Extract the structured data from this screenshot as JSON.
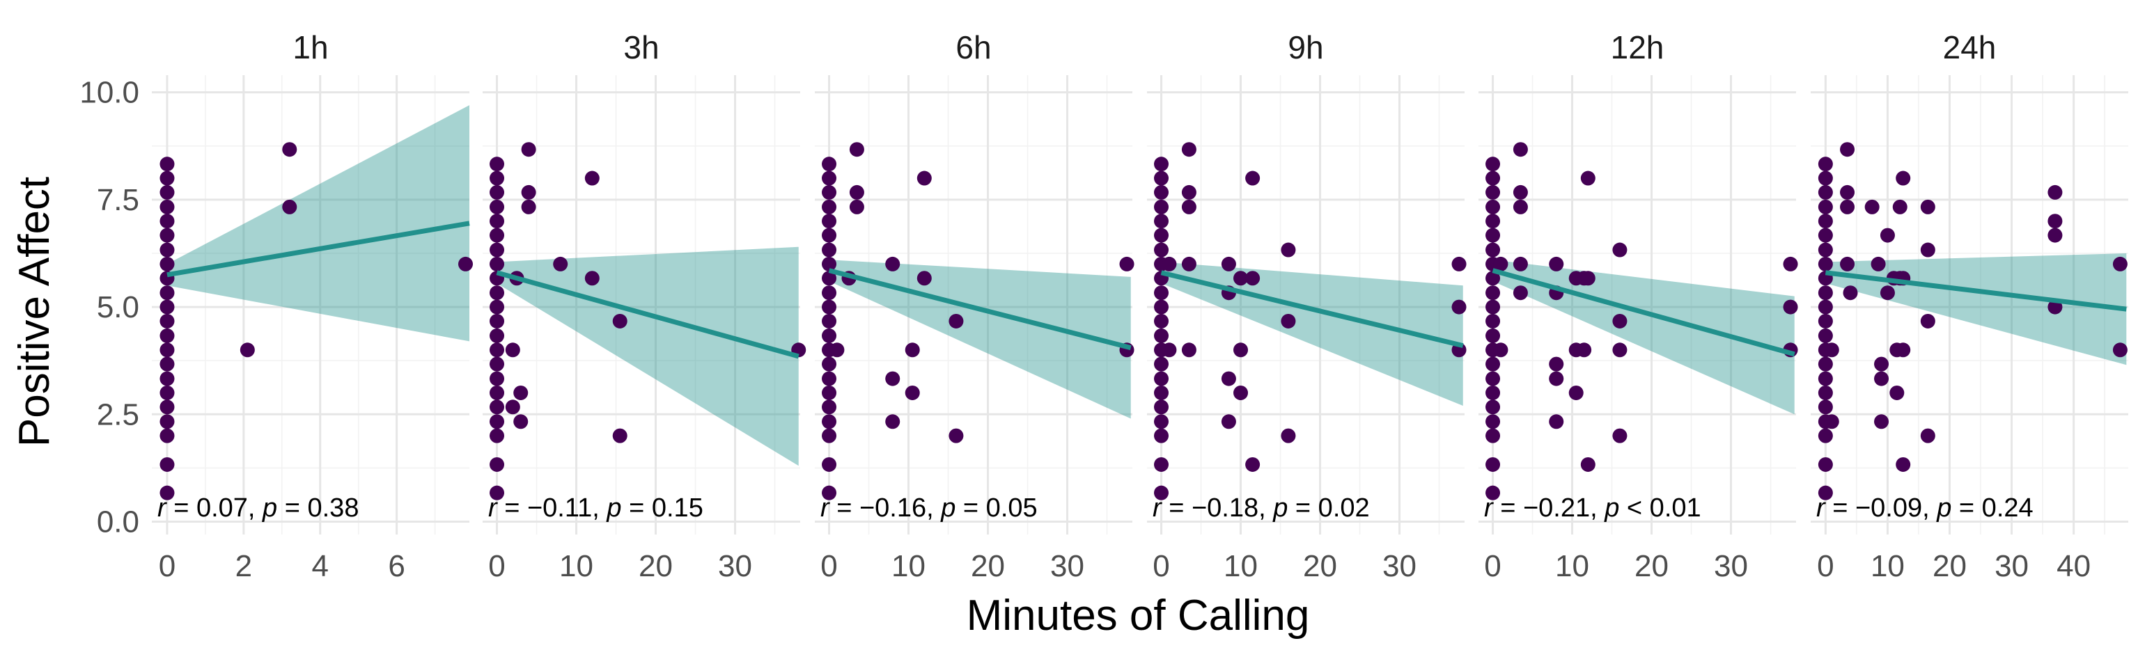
{
  "chart_data": {
    "type": "scatter",
    "xlabel": "Minutes of Calling",
    "ylabel": "Positive Affect",
    "y_ticks": [
      "0.0",
      "2.5",
      "5.0",
      "7.5",
      "10.0"
    ],
    "y_tick_values": [
      0,
      2.5,
      5,
      7.5,
      10
    ],
    "ylim": [
      -0.3,
      10.4
    ],
    "colors": {
      "points": "#440154",
      "line": "#21908c",
      "band": "#21908c"
    },
    "panels": [
      {
        "label": "1h",
        "xlim": [
          -0.4,
          7.9
        ],
        "x_ticks": [
          "0",
          "2",
          "4",
          "6"
        ],
        "x_tick_values": [
          0,
          2,
          4,
          6
        ],
        "annotation": {
          "r": "0.07",
          "p_op": "=",
          "p": "0.38"
        },
        "fit": {
          "x0": 0,
          "y0": 5.75,
          "x1": 7.9,
          "y1": 6.95,
          "lower0": 5.5,
          "upper0": 6.0,
          "lower1": 4.2,
          "upper1": 9.7
        },
        "points": [
          [
            0,
            0.67
          ],
          [
            0,
            1.33
          ],
          [
            0,
            2.0
          ],
          [
            0,
            2.33
          ],
          [
            0,
            2.67
          ],
          [
            0,
            3.0
          ],
          [
            0,
            3.33
          ],
          [
            0,
            3.67
          ],
          [
            0,
            4.0
          ],
          [
            0,
            4.33
          ],
          [
            0,
            4.67
          ],
          [
            0,
            5.0
          ],
          [
            0,
            5.33
          ],
          [
            0,
            5.67
          ],
          [
            0,
            6.0
          ],
          [
            0,
            6.33
          ],
          [
            0,
            6.67
          ],
          [
            0,
            7.0
          ],
          [
            0,
            7.33
          ],
          [
            0,
            7.67
          ],
          [
            0,
            8.0
          ],
          [
            0,
            8.33
          ],
          [
            2.1,
            4.0
          ],
          [
            3.2,
            7.33
          ],
          [
            3.2,
            8.67
          ],
          [
            7.8,
            6.0
          ]
        ]
      },
      {
        "label": "3h",
        "xlim": [
          -1.8,
          38.2
        ],
        "x_ticks": [
          "0",
          "10",
          "20",
          "30"
        ],
        "x_tick_values": [
          0,
          10,
          20,
          30
        ],
        "annotation": {
          "r": "−0.11",
          "p_op": "=",
          "p": "0.15"
        },
        "fit": {
          "x0": 0,
          "y0": 5.8,
          "x1": 38,
          "y1": 3.85,
          "lower0": 5.55,
          "upper0": 6.05,
          "lower1": 1.3,
          "upper1": 6.4
        },
        "points": [
          [
            0,
            0.67
          ],
          [
            0,
            1.33
          ],
          [
            0,
            2.0
          ],
          [
            0,
            2.33
          ],
          [
            0,
            2.67
          ],
          [
            0,
            3.0
          ],
          [
            0,
            3.33
          ],
          [
            0,
            3.67
          ],
          [
            0,
            4.0
          ],
          [
            0,
            4.33
          ],
          [
            0,
            4.67
          ],
          [
            0,
            5.0
          ],
          [
            0,
            5.33
          ],
          [
            0,
            5.67
          ],
          [
            0,
            6.0
          ],
          [
            0,
            6.33
          ],
          [
            0,
            6.67
          ],
          [
            0,
            7.0
          ],
          [
            0,
            7.33
          ],
          [
            0,
            7.67
          ],
          [
            0,
            8.0
          ],
          [
            0,
            8.33
          ],
          [
            2,
            4.0
          ],
          [
            2,
            2.67
          ],
          [
            2.5,
            5.67
          ],
          [
            3,
            2.33
          ],
          [
            3,
            3.0
          ],
          [
            4,
            8.67
          ],
          [
            4,
            7.67
          ],
          [
            4,
            7.33
          ],
          [
            8,
            6.0
          ],
          [
            12,
            8.0
          ],
          [
            12,
            5.67
          ],
          [
            15.5,
            4.67
          ],
          [
            15.5,
            2.0
          ],
          [
            38,
            4.0
          ]
        ]
      },
      {
        "label": "6h",
        "xlim": [
          -1.8,
          38.2
        ],
        "x_ticks": [
          "0",
          "10",
          "20",
          "30"
        ],
        "x_tick_values": [
          0,
          10,
          20,
          30
        ],
        "annotation": {
          "r": "−0.16",
          "p_op": "=",
          "p": "0.05"
        },
        "fit": {
          "x0": 0,
          "y0": 5.85,
          "x1": 38,
          "y1": 4.05,
          "lower0": 5.6,
          "upper0": 6.1,
          "lower1": 2.4,
          "upper1": 5.7
        },
        "points": [
          [
            0,
            0.67
          ],
          [
            0,
            1.33
          ],
          [
            0,
            2.0
          ],
          [
            0,
            2.33
          ],
          [
            0,
            2.67
          ],
          [
            0,
            3.0
          ],
          [
            0,
            3.33
          ],
          [
            0,
            3.67
          ],
          [
            0,
            4.0
          ],
          [
            0,
            4.33
          ],
          [
            0,
            4.67
          ],
          [
            0,
            5.0
          ],
          [
            0,
            5.33
          ],
          [
            0,
            5.67
          ],
          [
            0,
            6.0
          ],
          [
            0,
            6.33
          ],
          [
            0,
            6.67
          ],
          [
            0,
            7.0
          ],
          [
            0,
            7.33
          ],
          [
            0,
            7.67
          ],
          [
            0,
            8.0
          ],
          [
            0,
            8.33
          ],
          [
            1,
            4.0
          ],
          [
            2.5,
            5.67
          ],
          [
            3.5,
            8.67
          ],
          [
            3.5,
            7.67
          ],
          [
            3.5,
            7.33
          ],
          [
            8,
            6.0
          ],
          [
            8,
            3.33
          ],
          [
            8,
            2.33
          ],
          [
            10.5,
            4.0
          ],
          [
            10.5,
            3.0
          ],
          [
            12,
            8.0
          ],
          [
            12,
            5.67
          ],
          [
            16,
            4.67
          ],
          [
            16,
            2.0
          ],
          [
            37.5,
            6.0
          ],
          [
            37.5,
            4.0
          ]
        ]
      },
      {
        "label": "9h",
        "xlim": [
          -1.8,
          38.2
        ],
        "x_ticks": [
          "0",
          "10",
          "20",
          "30"
        ],
        "x_tick_values": [
          0,
          10,
          20,
          30
        ],
        "annotation": {
          "r": "−0.18",
          "p_op": "=",
          "p": "0.02"
        },
        "fit": {
          "x0": 0,
          "y0": 5.8,
          "x1": 38,
          "y1": 4.1,
          "lower0": 5.55,
          "upper0": 6.05,
          "lower1": 2.7,
          "upper1": 5.5
        },
        "points": [
          [
            0,
            0.67
          ],
          [
            0,
            1.33
          ],
          [
            0,
            2.0
          ],
          [
            0,
            2.33
          ],
          [
            0,
            2.67
          ],
          [
            0,
            3.0
          ],
          [
            0,
            3.33
          ],
          [
            0,
            3.67
          ],
          [
            0,
            4.0
          ],
          [
            0,
            4.33
          ],
          [
            0,
            4.67
          ],
          [
            0,
            5.0
          ],
          [
            0,
            5.33
          ],
          [
            0,
            5.67
          ],
          [
            0,
            6.0
          ],
          [
            0,
            6.33
          ],
          [
            0,
            6.67
          ],
          [
            0,
            7.0
          ],
          [
            0,
            7.33
          ],
          [
            0,
            7.67
          ],
          [
            0,
            8.0
          ],
          [
            0,
            8.33
          ],
          [
            1,
            6.0
          ],
          [
            1,
            4.0
          ],
          [
            3.5,
            8.67
          ],
          [
            3.5,
            7.67
          ],
          [
            3.5,
            7.33
          ],
          [
            3.5,
            4.0
          ],
          [
            3.5,
            6.0
          ],
          [
            8.5,
            6.0
          ],
          [
            8.5,
            5.33
          ],
          [
            8.5,
            3.33
          ],
          [
            8.5,
            2.33
          ],
          [
            10,
            5.67
          ],
          [
            10,
            4.0
          ],
          [
            10,
            3.0
          ],
          [
            11.5,
            8.0
          ],
          [
            11.5,
            5.67
          ],
          [
            11.5,
            1.33
          ],
          [
            16,
            6.33
          ],
          [
            16,
            4.67
          ],
          [
            16,
            2.0
          ],
          [
            37.5,
            6.0
          ],
          [
            37.5,
            5.0
          ],
          [
            37.5,
            4.0
          ]
        ]
      },
      {
        "label": "12h",
        "xlim": [
          -1.8,
          38.2
        ],
        "x_ticks": [
          "0",
          "10",
          "20",
          "30"
        ],
        "x_tick_values": [
          0,
          10,
          20,
          30
        ],
        "annotation": {
          "r": "−0.21",
          "p_op": "<",
          "p": "0.01"
        },
        "fit": {
          "x0": 0,
          "y0": 5.85,
          "x1": 38,
          "y1": 3.9,
          "lower0": 5.6,
          "upper0": 6.1,
          "lower1": 2.5,
          "upper1": 5.25
        },
        "points": [
          [
            0,
            0.67
          ],
          [
            0,
            1.33
          ],
          [
            0,
            2.0
          ],
          [
            0,
            2.33
          ],
          [
            0,
            2.67
          ],
          [
            0,
            3.0
          ],
          [
            0,
            3.33
          ],
          [
            0,
            3.67
          ],
          [
            0,
            4.0
          ],
          [
            0,
            4.33
          ],
          [
            0,
            4.67
          ],
          [
            0,
            5.0
          ],
          [
            0,
            5.33
          ],
          [
            0,
            5.67
          ],
          [
            0,
            6.0
          ],
          [
            0,
            6.33
          ],
          [
            0,
            6.67
          ],
          [
            0,
            7.0
          ],
          [
            0,
            7.33
          ],
          [
            0,
            7.67
          ],
          [
            0,
            8.0
          ],
          [
            0,
            8.33
          ],
          [
            1,
            4.0
          ],
          [
            1,
            6.0
          ],
          [
            3.5,
            8.67
          ],
          [
            3.5,
            7.67
          ],
          [
            3.5,
            7.33
          ],
          [
            3.5,
            6.0
          ],
          [
            3.5,
            5.33
          ],
          [
            8,
            6.0
          ],
          [
            8,
            5.33
          ],
          [
            8,
            3.67
          ],
          [
            8,
            3.33
          ],
          [
            8,
            2.33
          ],
          [
            10.5,
            5.67
          ],
          [
            10.5,
            4.0
          ],
          [
            10.5,
            3.0
          ],
          [
            11.5,
            5.67
          ],
          [
            11.5,
            4.0
          ],
          [
            12,
            8.0
          ],
          [
            12,
            5.67
          ],
          [
            12,
            1.33
          ],
          [
            16,
            6.33
          ],
          [
            16,
            4.67
          ],
          [
            16,
            4.0
          ],
          [
            16,
            2.0
          ],
          [
            37.5,
            6.0
          ],
          [
            37.5,
            5.0
          ],
          [
            37.5,
            4.0
          ]
        ]
      },
      {
        "label": "24h",
        "xlim": [
          -2.4,
          48.8
        ],
        "x_ticks": [
          "0",
          "10",
          "20",
          "30",
          "40"
        ],
        "x_tick_values": [
          0,
          10,
          20,
          30,
          40
        ],
        "annotation": {
          "r": "−0.09",
          "p_op": "=",
          "p": "0.24"
        },
        "fit": {
          "x0": 0,
          "y0": 5.8,
          "x1": 48.5,
          "y1": 4.95,
          "lower0": 5.55,
          "upper0": 6.05,
          "lower1": 3.65,
          "upper1": 6.25
        },
        "points": [
          [
            0,
            0.67
          ],
          [
            0,
            1.33
          ],
          [
            0,
            2.0
          ],
          [
            0,
            2.33
          ],
          [
            0,
            2.67
          ],
          [
            0,
            3.0
          ],
          [
            0,
            3.33
          ],
          [
            0,
            3.67
          ],
          [
            0,
            4.0
          ],
          [
            0,
            4.33
          ],
          [
            0,
            4.67
          ],
          [
            0,
            5.0
          ],
          [
            0,
            5.33
          ],
          [
            0,
            5.67
          ],
          [
            0,
            6.0
          ],
          [
            0,
            6.33
          ],
          [
            0,
            6.67
          ],
          [
            0,
            7.0
          ],
          [
            0,
            7.33
          ],
          [
            0,
            7.67
          ],
          [
            0,
            8.0
          ],
          [
            0,
            8.33
          ],
          [
            1,
            2.33
          ],
          [
            1,
            4.0
          ],
          [
            3.5,
            8.67
          ],
          [
            3.5,
            7.67
          ],
          [
            3.5,
            7.33
          ],
          [
            3.5,
            6.0
          ],
          [
            4,
            5.33
          ],
          [
            7.5,
            7.33
          ],
          [
            8.5,
            6.0
          ],
          [
            9,
            3.67
          ],
          [
            9,
            3.33
          ],
          [
            9,
            2.33
          ],
          [
            10,
            6.67
          ],
          [
            10,
            5.33
          ],
          [
            11,
            5.67
          ],
          [
            11.5,
            4.0
          ],
          [
            11.5,
            3.0
          ],
          [
            12,
            7.33
          ],
          [
            12,
            5.67
          ],
          [
            12.5,
            8.0
          ],
          [
            12.5,
            5.67
          ],
          [
            12.5,
            4.0
          ],
          [
            12.5,
            1.33
          ],
          [
            16.5,
            7.33
          ],
          [
            16.5,
            6.33
          ],
          [
            16.5,
            4.67
          ],
          [
            16.5,
            2.0
          ],
          [
            37,
            7.67
          ],
          [
            37,
            7.0
          ],
          [
            37,
            6.67
          ],
          [
            37,
            5.0
          ],
          [
            47.5,
            6.0
          ],
          [
            47.5,
            4.0
          ]
        ]
      }
    ]
  }
}
